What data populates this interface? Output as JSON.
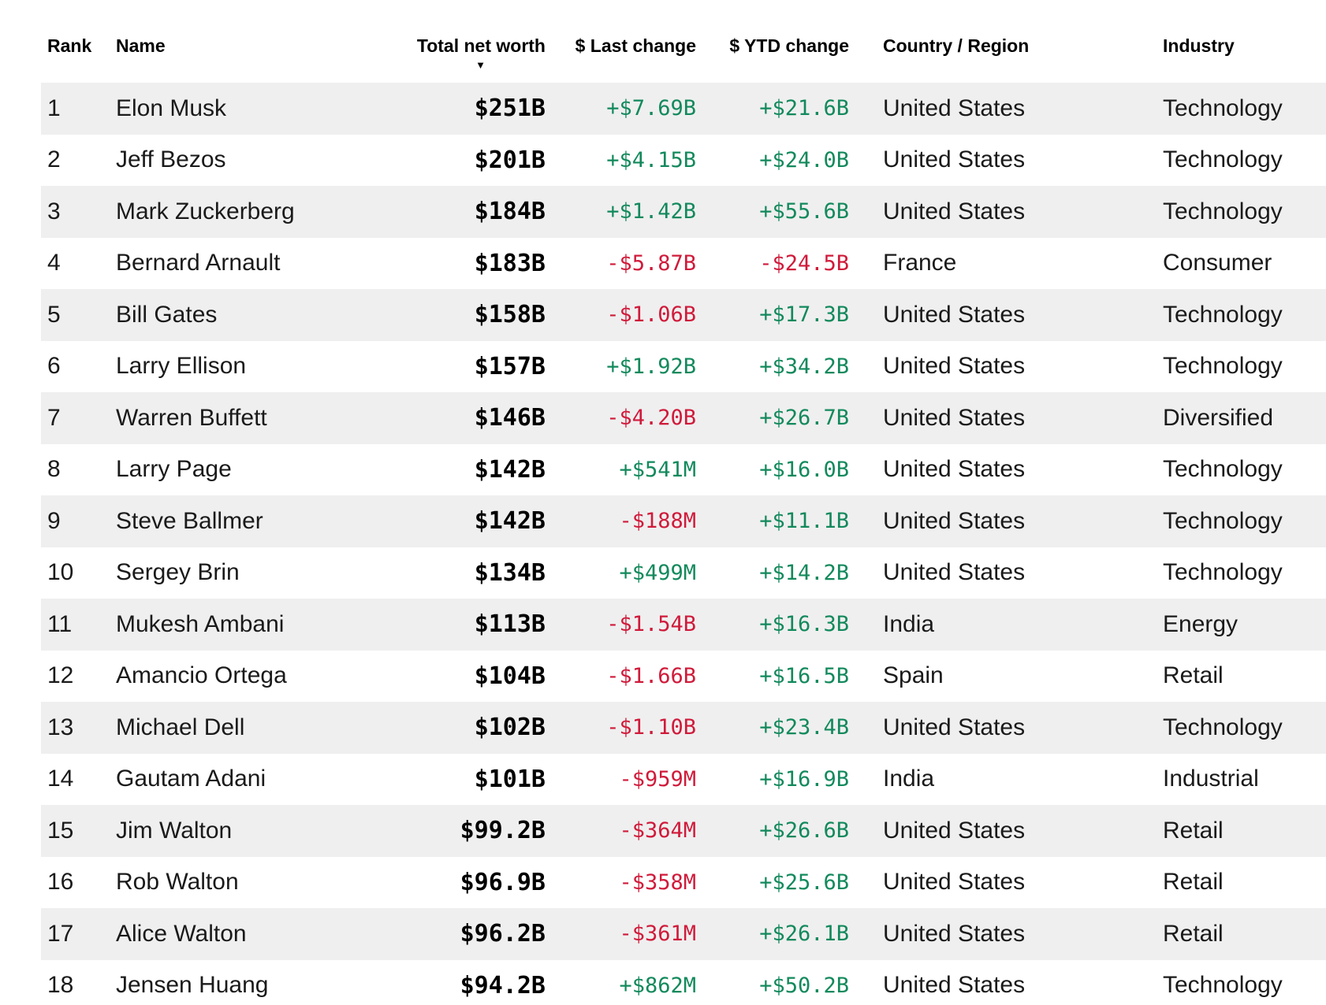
{
  "colors": {
    "positive_change": "#12895c",
    "negative_change": "#d01a3a",
    "row_stripe": "#efefef"
  },
  "table": {
    "columns": {
      "rank": {
        "label": "Rank"
      },
      "name": {
        "label": "Name"
      },
      "net_worth": {
        "label": "Total net worth",
        "sorted": "descending",
        "sort_icon": "▼"
      },
      "last_change": {
        "label": "$ Last change"
      },
      "ytd_change": {
        "label": "$ YTD change"
      },
      "country": {
        "label": "Country / Region"
      },
      "industry": {
        "label": "Industry"
      }
    },
    "rows": [
      {
        "rank": "1",
        "name": "Elon Musk",
        "net_worth": "$251B",
        "last_change": "+$7.69B",
        "ytd_change": "+$21.6B",
        "country": "United States",
        "industry": "Technology"
      },
      {
        "rank": "2",
        "name": "Jeff Bezos",
        "net_worth": "$201B",
        "last_change": "+$4.15B",
        "ytd_change": "+$24.0B",
        "country": "United States",
        "industry": "Technology"
      },
      {
        "rank": "3",
        "name": "Mark Zuckerberg",
        "net_worth": "$184B",
        "last_change": "+$1.42B",
        "ytd_change": "+$55.6B",
        "country": "United States",
        "industry": "Technology"
      },
      {
        "rank": "4",
        "name": "Bernard Arnault",
        "net_worth": "$183B",
        "last_change": "-$5.87B",
        "ytd_change": "-$24.5B",
        "country": "France",
        "industry": "Consumer"
      },
      {
        "rank": "5",
        "name": "Bill Gates",
        "net_worth": "$158B",
        "last_change": "-$1.06B",
        "ytd_change": "+$17.3B",
        "country": "United States",
        "industry": "Technology"
      },
      {
        "rank": "6",
        "name": "Larry Ellison",
        "net_worth": "$157B",
        "last_change": "+$1.92B",
        "ytd_change": "+$34.2B",
        "country": "United States",
        "industry": "Technology"
      },
      {
        "rank": "7",
        "name": "Warren Buffett",
        "net_worth": "$146B",
        "last_change": "-$4.20B",
        "ytd_change": "+$26.7B",
        "country": "United States",
        "industry": "Diversified"
      },
      {
        "rank": "8",
        "name": "Larry Page",
        "net_worth": "$142B",
        "last_change": "+$541M",
        "ytd_change": "+$16.0B",
        "country": "United States",
        "industry": "Technology"
      },
      {
        "rank": "9",
        "name": "Steve Ballmer",
        "net_worth": "$142B",
        "last_change": "-$188M",
        "ytd_change": "+$11.1B",
        "country": "United States",
        "industry": "Technology"
      },
      {
        "rank": "10",
        "name": "Sergey Brin",
        "net_worth": "$134B",
        "last_change": "+$499M",
        "ytd_change": "+$14.2B",
        "country": "United States",
        "industry": "Technology"
      },
      {
        "rank": "11",
        "name": "Mukesh Ambani",
        "net_worth": "$113B",
        "last_change": "-$1.54B",
        "ytd_change": "+$16.3B",
        "country": "India",
        "industry": "Energy"
      },
      {
        "rank": "12",
        "name": "Amancio Ortega",
        "net_worth": "$104B",
        "last_change": "-$1.66B",
        "ytd_change": "+$16.5B",
        "country": "Spain",
        "industry": "Retail"
      },
      {
        "rank": "13",
        "name": "Michael Dell",
        "net_worth": "$102B",
        "last_change": "-$1.10B",
        "ytd_change": "+$23.4B",
        "country": "United States",
        "industry": "Technology"
      },
      {
        "rank": "14",
        "name": "Gautam Adani",
        "net_worth": "$101B",
        "last_change": "-$959M",
        "ytd_change": "+$16.9B",
        "country": "India",
        "industry": "Industrial"
      },
      {
        "rank": "15",
        "name": "Jim Walton",
        "net_worth": "$99.2B",
        "last_change": "-$364M",
        "ytd_change": "+$26.6B",
        "country": "United States",
        "industry": "Retail"
      },
      {
        "rank": "16",
        "name": "Rob Walton",
        "net_worth": "$96.9B",
        "last_change": "-$358M",
        "ytd_change": "+$25.6B",
        "country": "United States",
        "industry": "Retail"
      },
      {
        "rank": "17",
        "name": "Alice Walton",
        "net_worth": "$96.2B",
        "last_change": "-$361M",
        "ytd_change": "+$26.1B",
        "country": "United States",
        "industry": "Retail"
      },
      {
        "rank": "18",
        "name": "Jensen Huang",
        "net_worth": "$94.2B",
        "last_change": "+$862M",
        "ytd_change": "+$50.2B",
        "country": "United States",
        "industry": "Technology"
      }
    ]
  }
}
